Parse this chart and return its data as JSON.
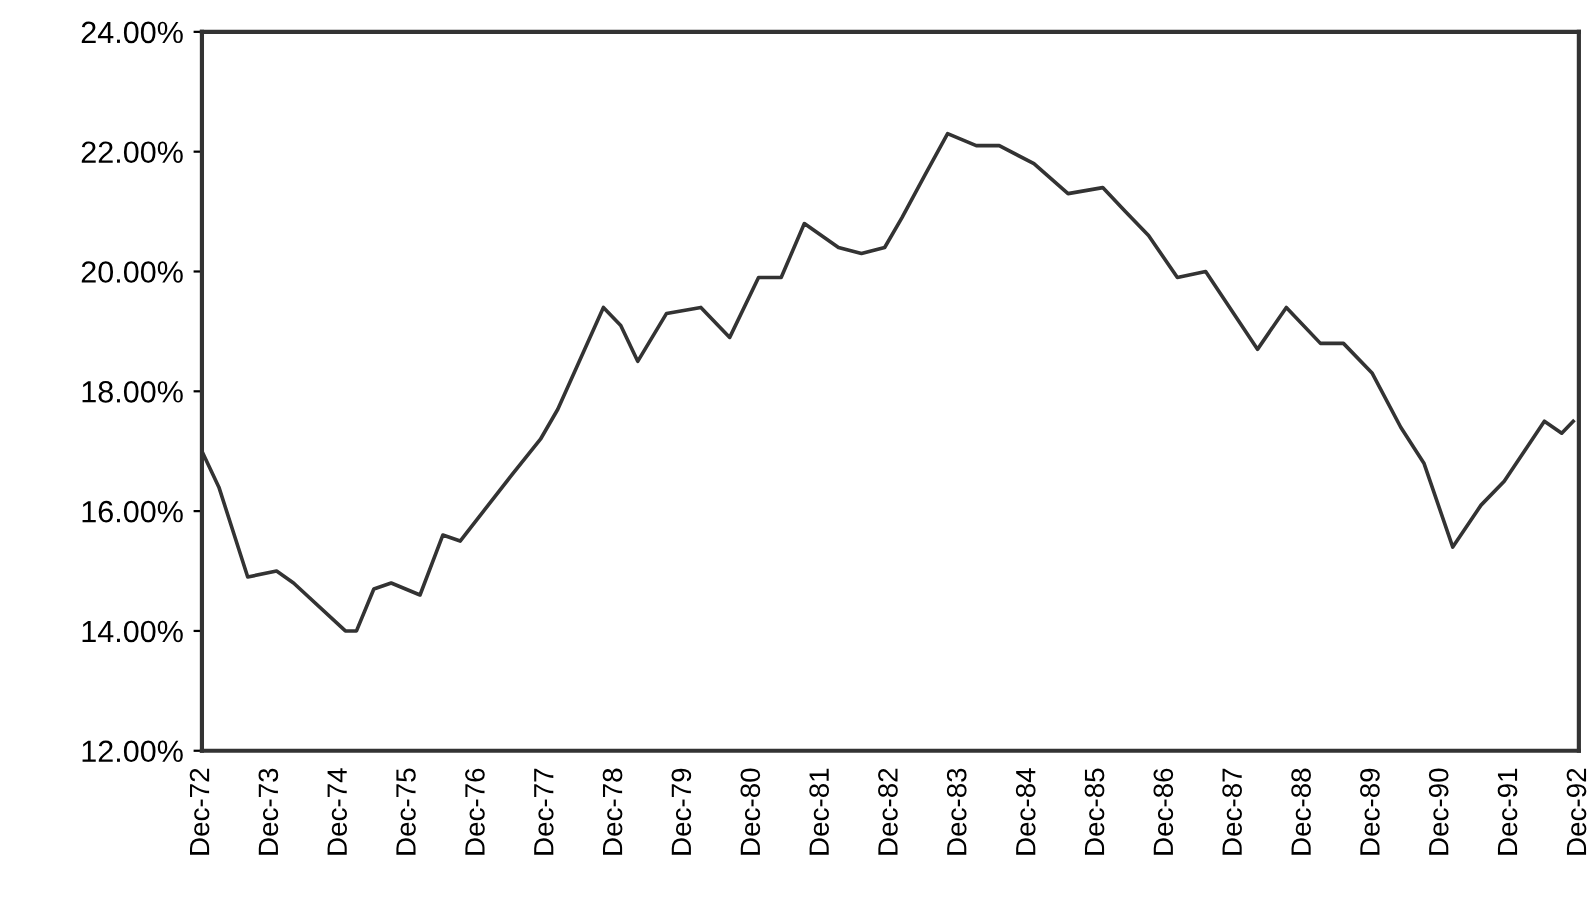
{
  "chart_data": {
    "type": "line",
    "x": [
      "1972-12",
      "1973-03",
      "1973-08",
      "1974-01",
      "1974-04",
      "1975-01",
      "1975-03",
      "1975-06",
      "1975-09",
      "1976-02",
      "1976-06",
      "1976-09",
      "1977-06",
      "1977-11",
      "1978-02",
      "1978-10",
      "1979-01",
      "1979-04",
      "1979-09",
      "1980-03",
      "1980-08",
      "1981-01",
      "1981-05",
      "1981-09",
      "1982-03",
      "1982-07",
      "1982-11",
      "1983-02",
      "1983-06",
      "1983-10",
      "1984-03",
      "1984-07",
      "1985-01",
      "1985-07",
      "1986-01",
      "1986-05",
      "1986-09",
      "1987-02",
      "1987-07",
      "1988-04",
      "1988-09",
      "1989-03",
      "1989-07",
      "1989-12",
      "1990-05",
      "1990-09",
      "1991-02",
      "1991-07",
      "1991-11",
      "1992-06",
      "1992-09",
      "1992-11"
    ],
    "series": [
      {
        "color": "#333333",
        "values": [
          17.0,
          16.4,
          14.9,
          15.0,
          14.8,
          14.0,
          14.0,
          14.7,
          14.8,
          14.6,
          15.6,
          15.5,
          16.6,
          17.2,
          17.7,
          19.4,
          19.1,
          18.5,
          19.3,
          19.4,
          18.9,
          19.9,
          19.9,
          20.8,
          20.4,
          20.3,
          20.4,
          20.9,
          21.6,
          22.3,
          22.1,
          22.1,
          21.8,
          21.3,
          21.4,
          21.0,
          20.6,
          19.9,
          20.0,
          18.7,
          19.4,
          18.8,
          18.8,
          18.3,
          17.4,
          16.8,
          15.4,
          16.1,
          16.5,
          17.5,
          17.3,
          17.5
        ]
      }
    ],
    "xlim": [
      "1972-12",
      "1992-12"
    ],
    "xticks": [
      {
        "value": "1972-12",
        "label": "Dec-72"
      },
      {
        "value": "1973-12",
        "label": "Dec-73"
      },
      {
        "value": "1974-12",
        "label": "Dec-74"
      },
      {
        "value": "1975-12",
        "label": "Dec-75"
      },
      {
        "value": "1976-12",
        "label": "Dec-76"
      },
      {
        "value": "1977-12",
        "label": "Dec-77"
      },
      {
        "value": "1978-12",
        "label": "Dec-78"
      },
      {
        "value": "1979-12",
        "label": "Dec-79"
      },
      {
        "value": "1980-12",
        "label": "Dec-80"
      },
      {
        "value": "1981-12",
        "label": "Dec-81"
      },
      {
        "value": "1982-12",
        "label": "Dec-82"
      },
      {
        "value": "1983-12",
        "label": "Dec-83"
      },
      {
        "value": "1984-12",
        "label": "Dec-84"
      },
      {
        "value": "1985-12",
        "label": "Dec-85"
      },
      {
        "value": "1986-12",
        "label": "Dec-86"
      },
      {
        "value": "1987-12",
        "label": "Dec-87"
      },
      {
        "value": "1988-12",
        "label": "Dec-88"
      },
      {
        "value": "1989-12",
        "label": "Dec-89"
      },
      {
        "value": "1990-12",
        "label": "Dec-90"
      },
      {
        "value": "1991-12",
        "label": "Dec-91"
      },
      {
        "value": "1992-12",
        "label": "Dec-92"
      }
    ],
    "ylim": [
      12,
      24
    ],
    "yticks": [
      {
        "value": 12,
        "label": "12.00%"
      },
      {
        "value": 14,
        "label": "14.00%"
      },
      {
        "value": 16,
        "label": "16.00%"
      },
      {
        "value": 18,
        "label": "18.00%"
      },
      {
        "value": 20,
        "label": "20.00%"
      },
      {
        "value": 22,
        "label": "22.00%"
      },
      {
        "value": 24,
        "label": "24.00%"
      }
    ],
    "grid": false,
    "legend": false,
    "marker": "none",
    "line_style": "solid"
  }
}
